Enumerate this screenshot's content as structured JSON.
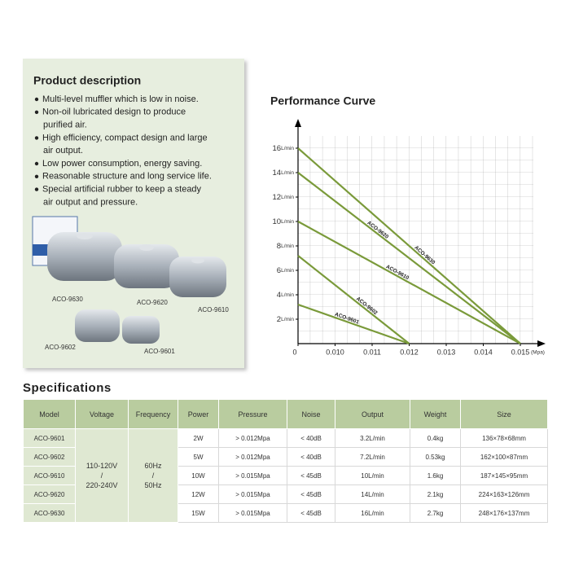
{
  "description": {
    "title": "Product description",
    "bullets": [
      [
        "Multi-level muffler which is low in noise."
      ],
      [
        "Non-oil lubricated design to produce",
        "purified air."
      ],
      [
        "High efficiency, compact design and large",
        "air output."
      ],
      [
        "Low power consumption, energy saving."
      ],
      [
        "Reasonable structure and long service life."
      ],
      [
        "Special artificial rubber to keep a steady",
        "air output and pressure."
      ]
    ],
    "products": [
      "ACO-9630",
      "ACO-9620",
      "ACO-9610",
      "ACO-9602",
      "ACO-9601"
    ]
  },
  "chart_data": {
    "type": "line",
    "title": "Performance Curve",
    "x_unit": "(Mpa)",
    "y_unit": "L/min",
    "xticks": [
      0,
      {
        "value": 0.01,
        "label": "0.010"
      },
      0.011,
      0.012,
      0.013,
      0.014,
      0.015
    ],
    "ylim": [
      0,
      17
    ],
    "yticks": [
      2,
      4,
      6,
      8,
      10,
      12,
      14,
      16
    ],
    "series": [
      {
        "name": "ACO-9601",
        "color": "#7a9a3a",
        "x": [
          0,
          0.012
        ],
        "values": [
          3.2,
          0
        ]
      },
      {
        "name": "ACO-9602",
        "color": "#7a9a3a",
        "x": [
          0,
          0.012
        ],
        "values": [
          7.2,
          0
        ]
      },
      {
        "name": "ACO-9610",
        "color": "#7a9a3a",
        "x": [
          0,
          0.015
        ],
        "values": [
          10,
          0
        ]
      },
      {
        "name": "ACO-9620",
        "color": "#7a9a3a",
        "x": [
          0,
          0.015
        ],
        "values": [
          14,
          0
        ]
      },
      {
        "name": "ACO-9630",
        "color": "#7a9a3a",
        "x": [
          0,
          0.015
        ],
        "values": [
          16,
          0
        ]
      }
    ]
  },
  "specifications": {
    "title": "Specifications",
    "headers": [
      "Model",
      "Voltage",
      "Frequency",
      "Power",
      "Pressure",
      "Noise",
      "Output",
      "Weight",
      "Size"
    ],
    "voltage": [
      "110-120V",
      "/",
      "220-240V"
    ],
    "frequency": [
      "60Hz",
      "/",
      "50Hz"
    ],
    "rows": [
      [
        "ACO-9601",
        "2W",
        "> 0.012Mpa",
        "< 40dB",
        "3.2L/min",
        "0.4kg",
        "136×78×68mm"
      ],
      [
        "ACO-9602",
        "5W",
        "> 0.012Mpa",
        "< 40dB",
        "7.2L/min",
        "0.53kg",
        "162×100×87mm"
      ],
      [
        "ACO-9610",
        "10W",
        "> 0.015Mpa",
        "< 45dB",
        "10L/min",
        "1.6kg",
        "187×145×95mm"
      ],
      [
        "ACO-9620",
        "12W",
        "> 0.015Mpa",
        "< 45dB",
        "14L/min",
        "2.1kg",
        "224×163×126mm"
      ],
      [
        "ACO-9630",
        "15W",
        "> 0.015Mpa",
        "< 45dB",
        "16L/min",
        "2.7kg",
        "248×176×137mm"
      ]
    ]
  }
}
